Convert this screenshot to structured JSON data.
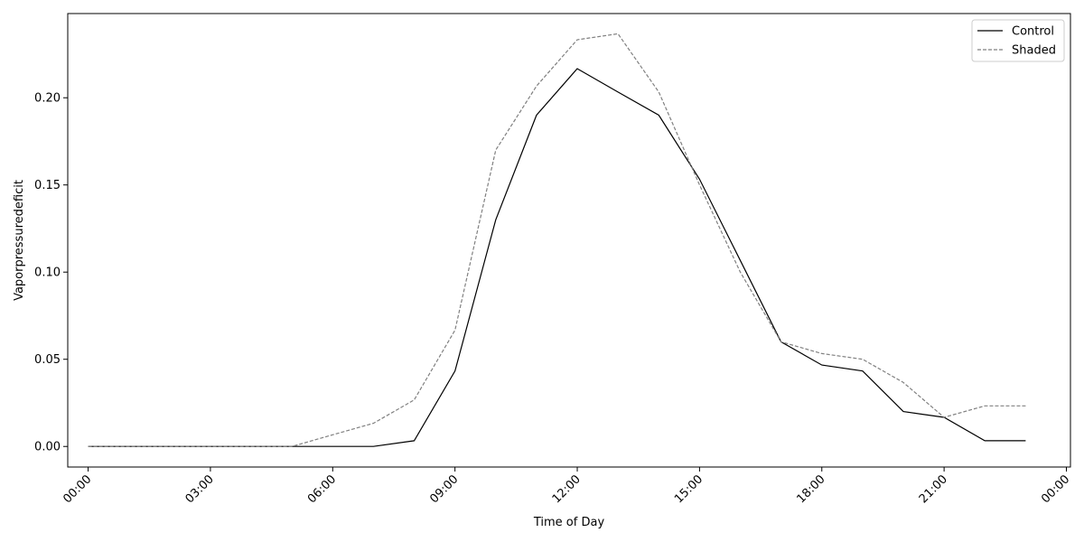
{
  "chart_data": {
    "type": "line",
    "title": "",
    "xlabel": "Time of Day",
    "ylabel": "Vaporpressuredeficit",
    "x_unit": "hour of day",
    "x": [
      0,
      1,
      2,
      3,
      4,
      5,
      6,
      7,
      8,
      9,
      10,
      11,
      12,
      13,
      14,
      15,
      16,
      17,
      18,
      19,
      20,
      21,
      22,
      23
    ],
    "xlim": [
      -0.5,
      24.1
    ],
    "ylim": [
      -0.0118,
      0.2483
    ],
    "x_ticks": [
      0,
      3,
      6,
      9,
      12,
      15,
      18,
      21,
      24
    ],
    "x_tick_labels": [
      "00:00",
      "03:00",
      "06:00",
      "09:00",
      "12:00",
      "15:00",
      "18:00",
      "21:00",
      "00:00"
    ],
    "y_ticks": [
      0.0,
      0.05,
      0.1,
      0.15,
      0.2
    ],
    "y_tick_labels": [
      "0.00",
      "0.05",
      "0.10",
      "0.15",
      "0.20"
    ],
    "grid": false,
    "legend_position": "top-right",
    "series": [
      {
        "name": "Control",
        "color": "#000000",
        "style": "solid",
        "values": [
          0,
          0,
          0,
          0,
          0,
          0,
          0,
          0,
          0.0033,
          0.0433,
          0.13,
          0.19,
          0.2167,
          0.2033,
          0.19,
          0.1533,
          0.1067,
          0.06,
          0.0467,
          0.0433,
          0.02,
          0.0167,
          0.0033,
          0.0033
        ]
      },
      {
        "name": "Shaded",
        "color": "#808080",
        "style": "dashed",
        "values": [
          0,
          0,
          0,
          0,
          0,
          0,
          0.0067,
          0.0133,
          0.0267,
          0.0667,
          0.17,
          0.2067,
          0.2333,
          0.2367,
          0.2033,
          0.15,
          0.1,
          0.06,
          0.0533,
          0.05,
          0.0367,
          0.0167,
          0.0233,
          0.0233
        ]
      }
    ]
  }
}
